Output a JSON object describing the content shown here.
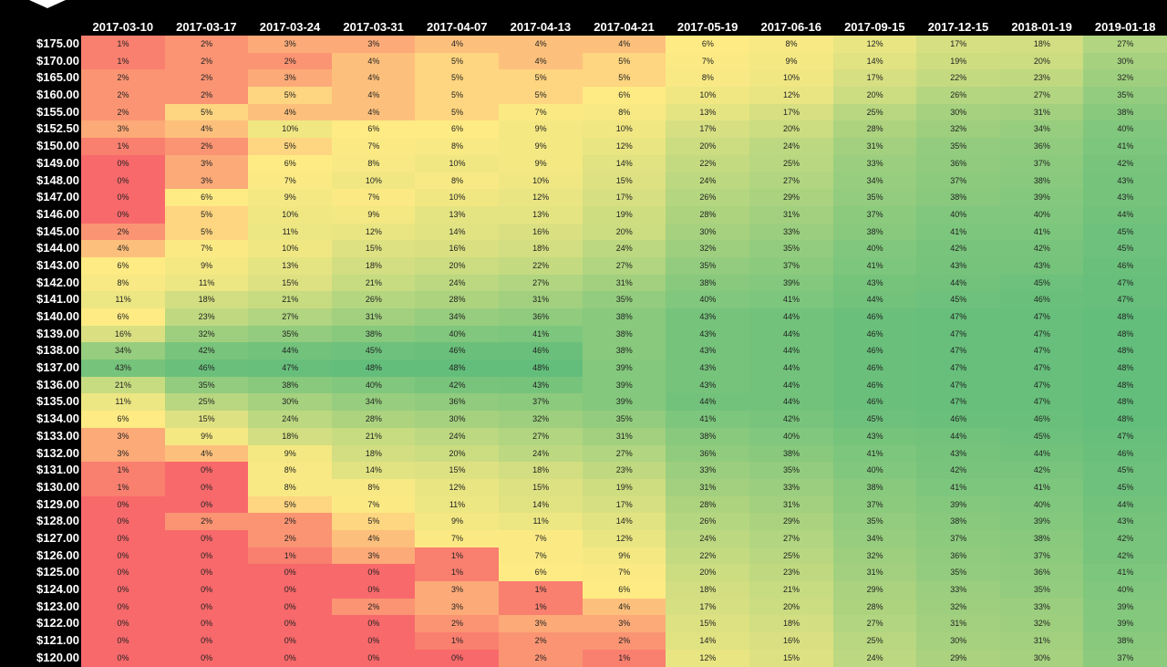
{
  "table": {
    "columns": [
      "2017-03-10",
      "2017-03-17",
      "2017-03-24",
      "2017-03-31",
      "2017-04-07",
      "2017-04-13",
      "2017-04-21",
      "2017-05-19",
      "2017-06-16",
      "2017-09-15",
      "2017-12-15",
      "2018-01-19",
      "2019-01-18"
    ],
    "rows": [
      {
        "strike": "$175.00",
        "cells": [
          "1%",
          "2%",
          "3%",
          "3%",
          "4%",
          "4%",
          "4%",
          "6%",
          "8%",
          "12%",
          "17%",
          "18%",
          "27%"
        ]
      },
      {
        "strike": "$170.00",
        "cells": [
          "1%",
          "2%",
          "2%",
          "4%",
          "5%",
          "4%",
          "5%",
          "7%",
          "9%",
          "14%",
          "19%",
          "20%",
          "30%"
        ]
      },
      {
        "strike": "$165.00",
        "cells": [
          "2%",
          "2%",
          "3%",
          "4%",
          "5%",
          "5%",
          "5%",
          "8%",
          "10%",
          "17%",
          "22%",
          "23%",
          "32%"
        ]
      },
      {
        "strike": "$160.00",
        "cells": [
          "2%",
          "2%",
          "5%",
          "4%",
          "5%",
          "5%",
          "6%",
          "10%",
          "12%",
          "20%",
          "26%",
          "27%",
          "35%"
        ]
      },
      {
        "strike": "$155.00",
        "cells": [
          "2%",
          "5%",
          "4%",
          "4%",
          "5%",
          "7%",
          "8%",
          "13%",
          "17%",
          "25%",
          "30%",
          "31%",
          "38%"
        ]
      },
      {
        "strike": "$152.50",
        "cells": [
          "3%",
          "4%",
          "10%",
          "6%",
          "6%",
          "9%",
          "10%",
          "17%",
          "20%",
          "28%",
          "32%",
          "34%",
          "40%"
        ]
      },
      {
        "strike": "$150.00",
        "cells": [
          "1%",
          "2%",
          "5%",
          "7%",
          "8%",
          "9%",
          "12%",
          "20%",
          "24%",
          "31%",
          "35%",
          "36%",
          "41%"
        ]
      },
      {
        "strike": "$149.00",
        "cells": [
          "0%",
          "3%",
          "6%",
          "8%",
          "10%",
          "9%",
          "14%",
          "22%",
          "25%",
          "33%",
          "36%",
          "37%",
          "42%"
        ]
      },
      {
        "strike": "$148.00",
        "cells": [
          "0%",
          "3%",
          "7%",
          "10%",
          "8%",
          "10%",
          "15%",
          "24%",
          "27%",
          "34%",
          "37%",
          "38%",
          "43%"
        ]
      },
      {
        "strike": "$147.00",
        "cells": [
          "0%",
          "6%",
          "9%",
          "7%",
          "10%",
          "12%",
          "17%",
          "26%",
          "29%",
          "35%",
          "38%",
          "39%",
          "43%"
        ]
      },
      {
        "strike": "$146.00",
        "cells": [
          "0%",
          "5%",
          "10%",
          "9%",
          "13%",
          "13%",
          "19%",
          "28%",
          "31%",
          "37%",
          "40%",
          "40%",
          "44%"
        ]
      },
      {
        "strike": "$145.00",
        "cells": [
          "2%",
          "5%",
          "11%",
          "12%",
          "14%",
          "16%",
          "20%",
          "30%",
          "33%",
          "38%",
          "41%",
          "41%",
          "45%"
        ]
      },
      {
        "strike": "$144.00",
        "cells": [
          "4%",
          "7%",
          "10%",
          "15%",
          "16%",
          "18%",
          "24%",
          "32%",
          "35%",
          "40%",
          "42%",
          "42%",
          "45%"
        ]
      },
      {
        "strike": "$143.00",
        "cells": [
          "6%",
          "9%",
          "13%",
          "18%",
          "20%",
          "22%",
          "27%",
          "35%",
          "37%",
          "41%",
          "43%",
          "43%",
          "46%"
        ]
      },
      {
        "strike": "$142.00",
        "cells": [
          "8%",
          "11%",
          "15%",
          "21%",
          "24%",
          "27%",
          "31%",
          "38%",
          "39%",
          "43%",
          "44%",
          "45%",
          "47%"
        ]
      },
      {
        "strike": "$141.00",
        "cells": [
          "11%",
          "18%",
          "21%",
          "26%",
          "28%",
          "31%",
          "35%",
          "40%",
          "41%",
          "44%",
          "45%",
          "46%",
          "47%"
        ]
      },
      {
        "strike": "$140.00",
        "cells": [
          "6%",
          "23%",
          "27%",
          "31%",
          "34%",
          "36%",
          "38%",
          "43%",
          "44%",
          "46%",
          "47%",
          "47%",
          "48%"
        ]
      },
      {
        "strike": "$139.00",
        "cells": [
          "16%",
          "32%",
          "35%",
          "38%",
          "40%",
          "41%",
          "38%",
          "43%",
          "44%",
          "46%",
          "47%",
          "47%",
          "48%"
        ]
      },
      {
        "strike": "$138.00",
        "cells": [
          "34%",
          "42%",
          "44%",
          "45%",
          "46%",
          "46%",
          "38%",
          "43%",
          "44%",
          "46%",
          "47%",
          "47%",
          "48%"
        ]
      },
      {
        "strike": "$137.00",
        "cells": [
          "43%",
          "46%",
          "47%",
          "48%",
          "48%",
          "48%",
          "39%",
          "43%",
          "44%",
          "46%",
          "47%",
          "47%",
          "48%"
        ]
      },
      {
        "strike": "$136.00",
        "cells": [
          "21%",
          "35%",
          "38%",
          "40%",
          "42%",
          "43%",
          "39%",
          "43%",
          "44%",
          "46%",
          "47%",
          "47%",
          "48%"
        ]
      },
      {
        "strike": "$135.00",
        "cells": [
          "11%",
          "25%",
          "30%",
          "34%",
          "36%",
          "37%",
          "39%",
          "44%",
          "44%",
          "46%",
          "47%",
          "47%",
          "48%"
        ]
      },
      {
        "strike": "$134.00",
        "cells": [
          "6%",
          "15%",
          "24%",
          "28%",
          "30%",
          "32%",
          "35%",
          "41%",
          "42%",
          "45%",
          "46%",
          "46%",
          "48%"
        ]
      },
      {
        "strike": "$133.00",
        "cells": [
          "3%",
          "9%",
          "18%",
          "21%",
          "24%",
          "27%",
          "31%",
          "38%",
          "40%",
          "43%",
          "44%",
          "45%",
          "47%"
        ]
      },
      {
        "strike": "$132.00",
        "cells": [
          "3%",
          "4%",
          "9%",
          "18%",
          "20%",
          "24%",
          "27%",
          "36%",
          "38%",
          "41%",
          "43%",
          "44%",
          "46%"
        ]
      },
      {
        "strike": "$131.00",
        "cells": [
          "1%",
          "0%",
          "8%",
          "14%",
          "15%",
          "18%",
          "23%",
          "33%",
          "35%",
          "40%",
          "42%",
          "42%",
          "45%"
        ]
      },
      {
        "strike": "$130.00",
        "cells": [
          "1%",
          "0%",
          "8%",
          "8%",
          "12%",
          "15%",
          "19%",
          "31%",
          "33%",
          "38%",
          "41%",
          "41%",
          "45%"
        ]
      },
      {
        "strike": "$129.00",
        "cells": [
          "0%",
          "0%",
          "5%",
          "7%",
          "11%",
          "14%",
          "17%",
          "28%",
          "31%",
          "37%",
          "39%",
          "40%",
          "44%"
        ]
      },
      {
        "strike": "$128.00",
        "cells": [
          "0%",
          "2%",
          "2%",
          "5%",
          "9%",
          "11%",
          "14%",
          "26%",
          "29%",
          "35%",
          "38%",
          "39%",
          "43%"
        ]
      },
      {
        "strike": "$127.00",
        "cells": [
          "0%",
          "0%",
          "2%",
          "4%",
          "7%",
          "7%",
          "12%",
          "24%",
          "27%",
          "34%",
          "37%",
          "38%",
          "42%"
        ]
      },
      {
        "strike": "$126.00",
        "cells": [
          "0%",
          "0%",
          "1%",
          "3%",
          "1%",
          "7%",
          "9%",
          "22%",
          "25%",
          "32%",
          "36%",
          "37%",
          "42%"
        ]
      },
      {
        "strike": "$125.00",
        "cells": [
          "0%",
          "0%",
          "0%",
          "0%",
          "1%",
          "6%",
          "7%",
          "20%",
          "23%",
          "31%",
          "35%",
          "36%",
          "41%"
        ]
      },
      {
        "strike": "$124.00",
        "cells": [
          "0%",
          "0%",
          "0%",
          "0%",
          "3%",
          "1%",
          "6%",
          "18%",
          "21%",
          "29%",
          "33%",
          "35%",
          "40%"
        ]
      },
      {
        "strike": "$123.00",
        "cells": [
          "0%",
          "0%",
          "0%",
          "2%",
          "3%",
          "1%",
          "4%",
          "17%",
          "20%",
          "28%",
          "32%",
          "33%",
          "39%"
        ]
      },
      {
        "strike": "$122.00",
        "cells": [
          "0%",
          "0%",
          "0%",
          "0%",
          "2%",
          "3%",
          "3%",
          "15%",
          "18%",
          "27%",
          "31%",
          "32%",
          "39%"
        ]
      },
      {
        "strike": "$121.00",
        "cells": [
          "0%",
          "0%",
          "0%",
          "0%",
          "1%",
          "2%",
          "2%",
          "14%",
          "16%",
          "25%",
          "30%",
          "31%",
          "38%"
        ]
      },
      {
        "strike": "$120.00",
        "cells": [
          "0%",
          "0%",
          "0%",
          "0%",
          "0%",
          "2%",
          "1%",
          "12%",
          "15%",
          "24%",
          "29%",
          "30%",
          "37%"
        ]
      }
    ]
  }
}
